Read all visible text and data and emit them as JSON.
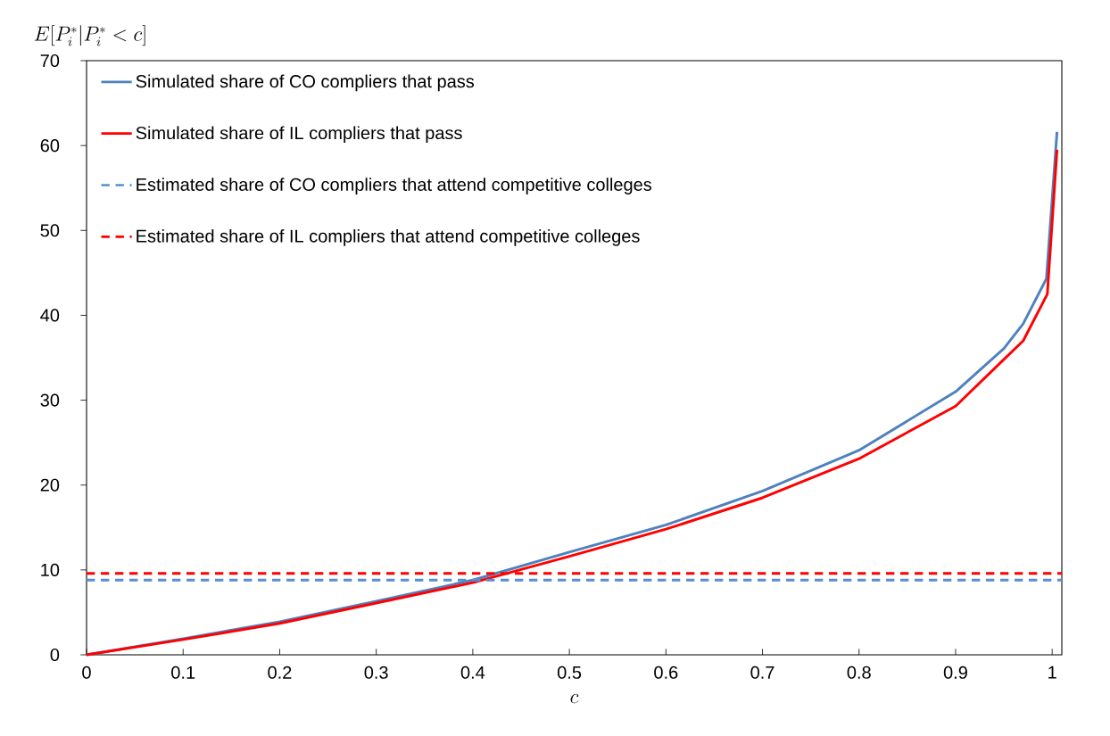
{
  "chart_data": {
    "type": "line",
    "xlabel": "c",
    "ylabel": "E[P_i^*|P_i^* < c]",
    "xlim": [
      0,
      1.01
    ],
    "ylim": [
      0,
      70
    ],
    "xticks": [
      0,
      0.1,
      0.2,
      0.3,
      0.4,
      0.5,
      0.6,
      0.7,
      0.8,
      0.9,
      1
    ],
    "yticks": [
      0,
      10,
      20,
      30,
      40,
      50,
      60,
      70
    ],
    "legend": "top left",
    "series": [
      {
        "name": "Simulated share of CO compliers that pass",
        "color": "#4f81bd",
        "line_style": "solid",
        "x": [
          0,
          0.1,
          0.2,
          0.3,
          0.4,
          0.5,
          0.6,
          0.7,
          0.8,
          0.9,
          0.95,
          0.97,
          0.994,
          1.005
        ],
        "values": [
          0,
          1.9,
          3.9,
          6.3,
          8.8,
          12.1,
          15.3,
          19.3,
          24.1,
          31.0,
          36.1,
          39.0,
          44.3,
          61.6
        ]
      },
      {
        "name": "Simulated share of IL compliers that pass",
        "color": "#ff0000",
        "line_style": "solid",
        "x": [
          0,
          0.1,
          0.2,
          0.3,
          0.4,
          0.5,
          0.6,
          0.7,
          0.8,
          0.9,
          0.95,
          0.97,
          0.995,
          1.005
        ],
        "values": [
          0,
          1.8,
          3.7,
          6.1,
          8.5,
          11.6,
          14.8,
          18.5,
          23.1,
          29.3,
          34.8,
          37.0,
          42.5,
          59.5
        ]
      },
      {
        "name": "Estimated share of CO compliers that attend competitive colleges",
        "color": "#558ed5",
        "line_style": "dashed",
        "x": [
          0,
          1.01
        ],
        "values": [
          8.8,
          8.8
        ]
      },
      {
        "name": "Estimated share of IL compliers that attend competitive colleges",
        "color": "#ff0000",
        "line_style": "dashed",
        "x": [
          0,
          1.01
        ],
        "values": [
          9.6,
          9.6
        ]
      }
    ]
  }
}
